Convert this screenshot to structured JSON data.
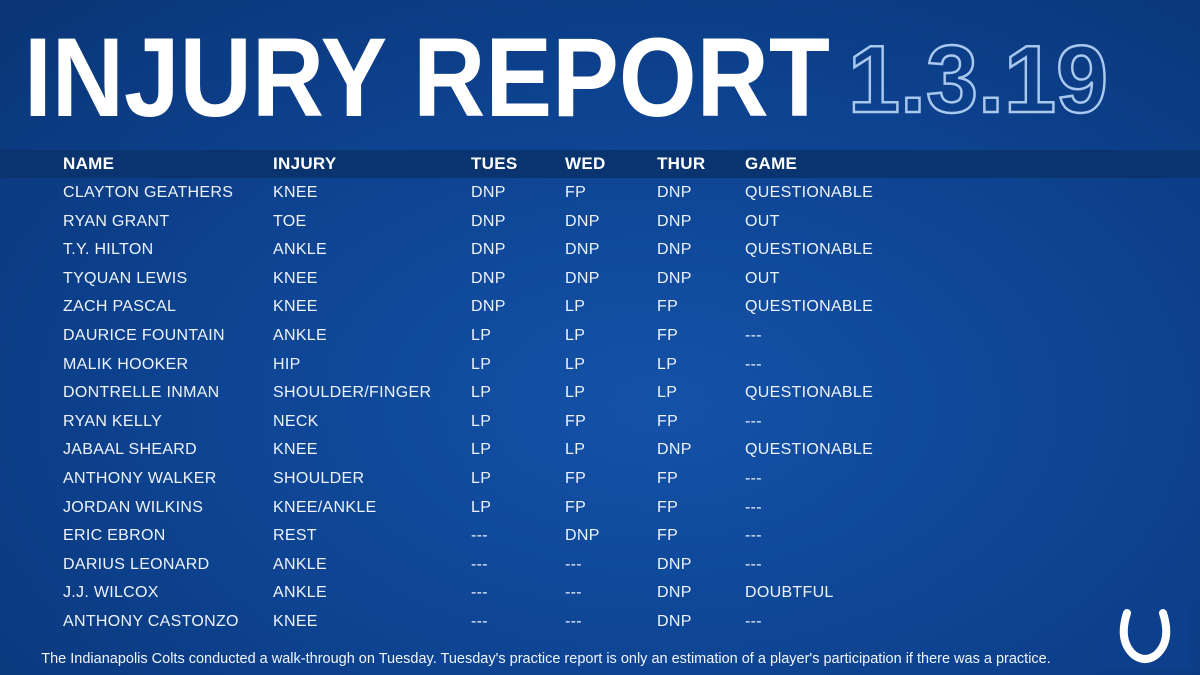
{
  "header": {
    "title": "INJURY REPORT",
    "date": "1.3.19"
  },
  "table": {
    "columns": [
      "NAME",
      "INJURY",
      "TUES",
      "WED",
      "THUR",
      "GAME"
    ],
    "rows": [
      [
        "CLAYTON GEATHERS",
        "KNEE",
        "DNP",
        "FP",
        "DNP",
        "QUESTIONABLE"
      ],
      [
        "RYAN GRANT",
        "TOE",
        "DNP",
        "DNP",
        "DNP",
        "OUT"
      ],
      [
        "T.Y. HILTON",
        "ANKLE",
        "DNP",
        "DNP",
        "DNP",
        "QUESTIONABLE"
      ],
      [
        "TYQUAN LEWIS",
        "KNEE",
        "DNP",
        "DNP",
        "DNP",
        "OUT"
      ],
      [
        "ZACH PASCAL",
        "KNEE",
        "DNP",
        "LP",
        "FP",
        "QUESTIONABLE"
      ],
      [
        "DAURICE FOUNTAIN",
        "ANKLE",
        "LP",
        "LP",
        "FP",
        "---"
      ],
      [
        "MALIK HOOKER",
        "HIP",
        "LP",
        "LP",
        "LP",
        "---"
      ],
      [
        "DONTRELLE INMAN",
        "SHOULDER/FINGER",
        "LP",
        "LP",
        "LP",
        "QUESTIONABLE"
      ],
      [
        "RYAN KELLY",
        "NECK",
        "LP",
        "FP",
        "FP",
        "---"
      ],
      [
        "JABAAL SHEARD",
        "KNEE",
        "LP",
        "LP",
        "DNP",
        "QUESTIONABLE"
      ],
      [
        "ANTHONY WALKER",
        "SHOULDER",
        "LP",
        "FP",
        "FP",
        "---"
      ],
      [
        "JORDAN WILKINS",
        "KNEE/ANKLE",
        "LP",
        "FP",
        "FP",
        "---"
      ],
      [
        "ERIC EBRON",
        "REST",
        "---",
        "DNP",
        "FP",
        "---"
      ],
      [
        "DARIUS LEONARD",
        "ANKLE",
        "---",
        "---",
        "DNP",
        "---"
      ],
      [
        "J.J. WILCOX",
        "ANKLE",
        "---",
        "---",
        "DNP",
        "DOUBTFUL"
      ],
      [
        "ANTHONY CASTONZO",
        "KNEE",
        "---",
        "---",
        "DNP",
        "---"
      ]
    ]
  },
  "footnote": "The Indianapolis Colts conducted a walk-through on Tuesday. Tuesday's practice report is only an estimation of a player's participation if there was a practice."
}
